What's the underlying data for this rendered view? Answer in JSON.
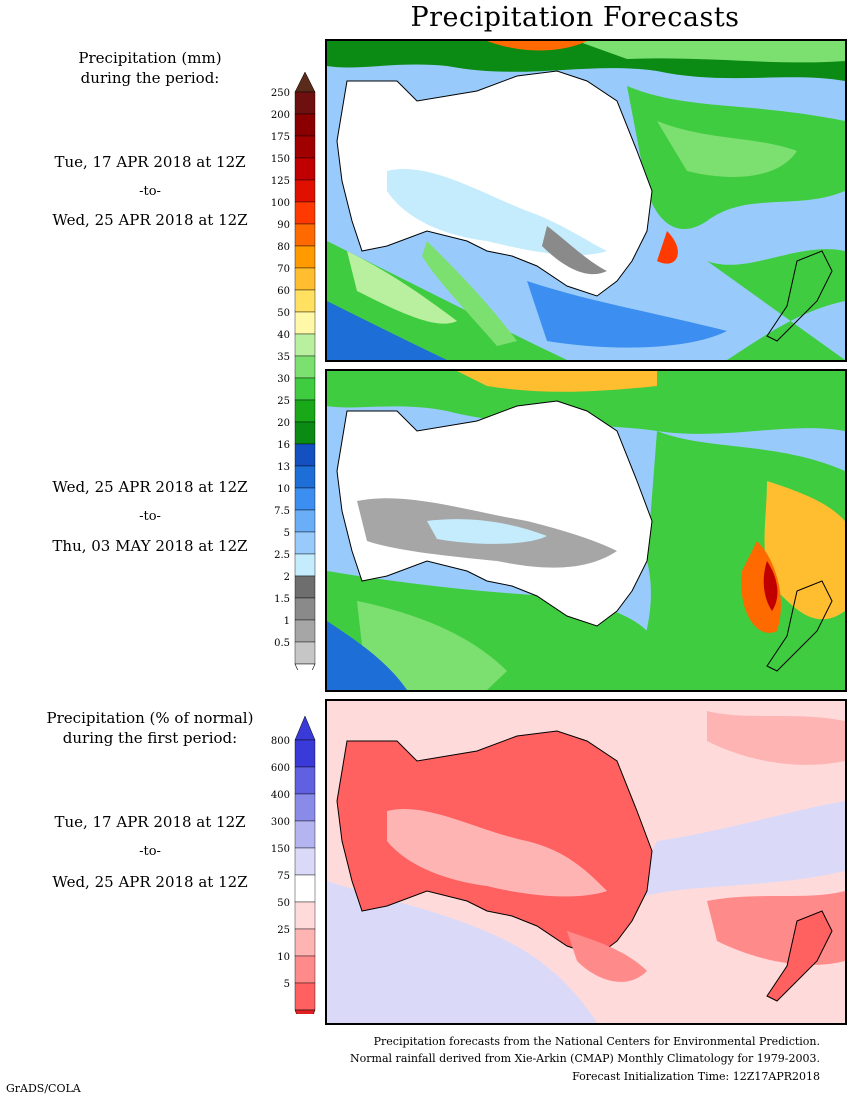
{
  "title": "Precipitation Forecasts",
  "left_labels": {
    "precip_heading_1": "Precipitation (mm)",
    "precip_heading_2": "during the period:",
    "period1_start": "Tue, 17 APR 2018 at 12Z",
    "period1_to": "-to-",
    "period1_end": "Wed, 25 APR 2018 at 12Z",
    "period2_start": "Wed, 25 APR 2018 at 12Z",
    "period2_to": "-to-",
    "period2_end": "Thu, 03 MAY 2018 at 12Z",
    "pct_heading_1": "Precipitation (% of normal)",
    "pct_heading_2": "during the first period:",
    "period3_start": "Tue, 17 APR 2018 at 12Z",
    "period3_to": "-to-",
    "period3_end": "Wed, 25 APR 2018 at 12Z"
  },
  "mm_scale": {
    "ticks": [
      "250",
      "200",
      "175",
      "150",
      "125",
      "100",
      "90",
      "80",
      "70",
      "60",
      "50",
      "40",
      "35",
      "30",
      "25",
      "20",
      "16",
      "13",
      "10",
      "7.5",
      "5",
      "2.5",
      "2",
      "1.5",
      "1",
      "0.5"
    ],
    "colors": [
      "#6e1010",
      "#8a0000",
      "#a00000",
      "#c00000",
      "#e01000",
      "#ff3a00",
      "#ff6a00",
      "#ff9a00",
      "#ffbe30",
      "#ffe060",
      "#fff8a8",
      "#b8f0a0",
      "#7ce070",
      "#40cc40",
      "#18a818",
      "#0b8a14",
      "#1450c0",
      "#1e6ed8",
      "#3c8ff0",
      "#6aaef8",
      "#98cbfb",
      "#c4ecfc",
      "#6e6e6e",
      "#8a8a8a",
      "#a6a6a6",
      "#c6c6c6"
    ],
    "top_arrow_color": "#5a2a1a"
  },
  "pct_scale": {
    "ticks": [
      "800",
      "600",
      "400",
      "300",
      "150",
      "75",
      "50",
      "25",
      "10",
      "5"
    ],
    "colors": [
      "#3a3ad8",
      "#6060e0",
      "#8a8ae8",
      "#b4b4f0",
      "#dadaf8",
      "#ffffff",
      "#ffdada",
      "#ffb4b4",
      "#ff8a8a",
      "#ff6060"
    ],
    "top_arrow_color": "#3a3ad8",
    "bottom_arrow_color": "#e02020"
  },
  "panels": [
    {
      "name": "forecast-period-1",
      "kind": "mm"
    },
    {
      "name": "forecast-period-2",
      "kind": "mm"
    },
    {
      "name": "percent-of-normal-period-1",
      "kind": "pct"
    }
  ],
  "footer": {
    "line1": "Precipitation forecasts from the National Centers for Environmental Prediction.",
    "line2": "Normal rainfall derived from Xie-Arkin (CMAP) Monthly Climatology for 1979-2003.",
    "line3": "Forecast Initialization Time: 12Z17APR2018"
  },
  "credit": "GrADS/COLA"
}
